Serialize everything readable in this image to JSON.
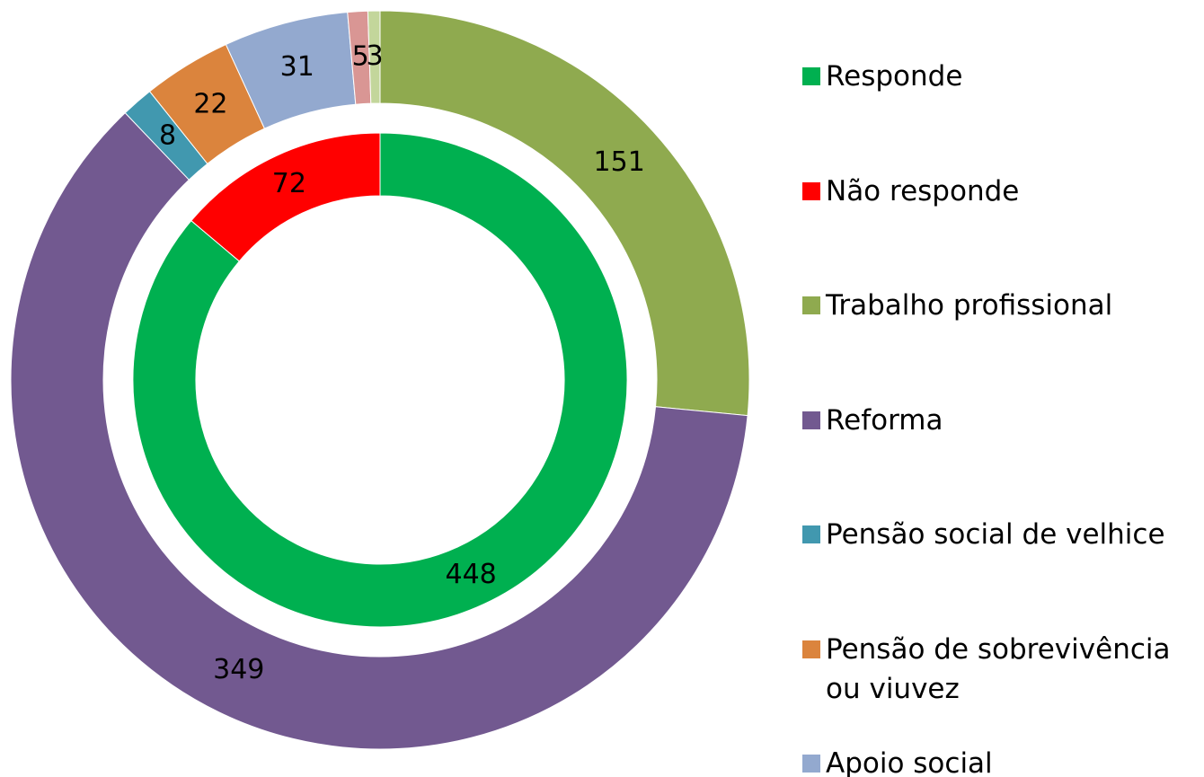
{
  "chart_data": {
    "type": "donut",
    "rings": [
      {
        "categories": [
          "Responde",
          "Não responde"
        ],
        "values": [
          448,
          72
        ],
        "colors": [
          "#00b050",
          "#ff0000"
        ]
      },
      {
        "categories": [
          "Trabalho profissional",
          "Reforma",
          "Pensão social de velhice",
          "Pensão de sobrevivência ou viuvez",
          "Apoio social",
          null,
          null
        ],
        "values": [
          151,
          349,
          8,
          22,
          31,
          5,
          3
        ],
        "colors": [
          "#8faa4f",
          "#725990",
          "#4198af",
          "#db843d",
          "#93a9cf",
          "#d99694",
          "#c3d69b"
        ]
      }
    ]
  }
}
